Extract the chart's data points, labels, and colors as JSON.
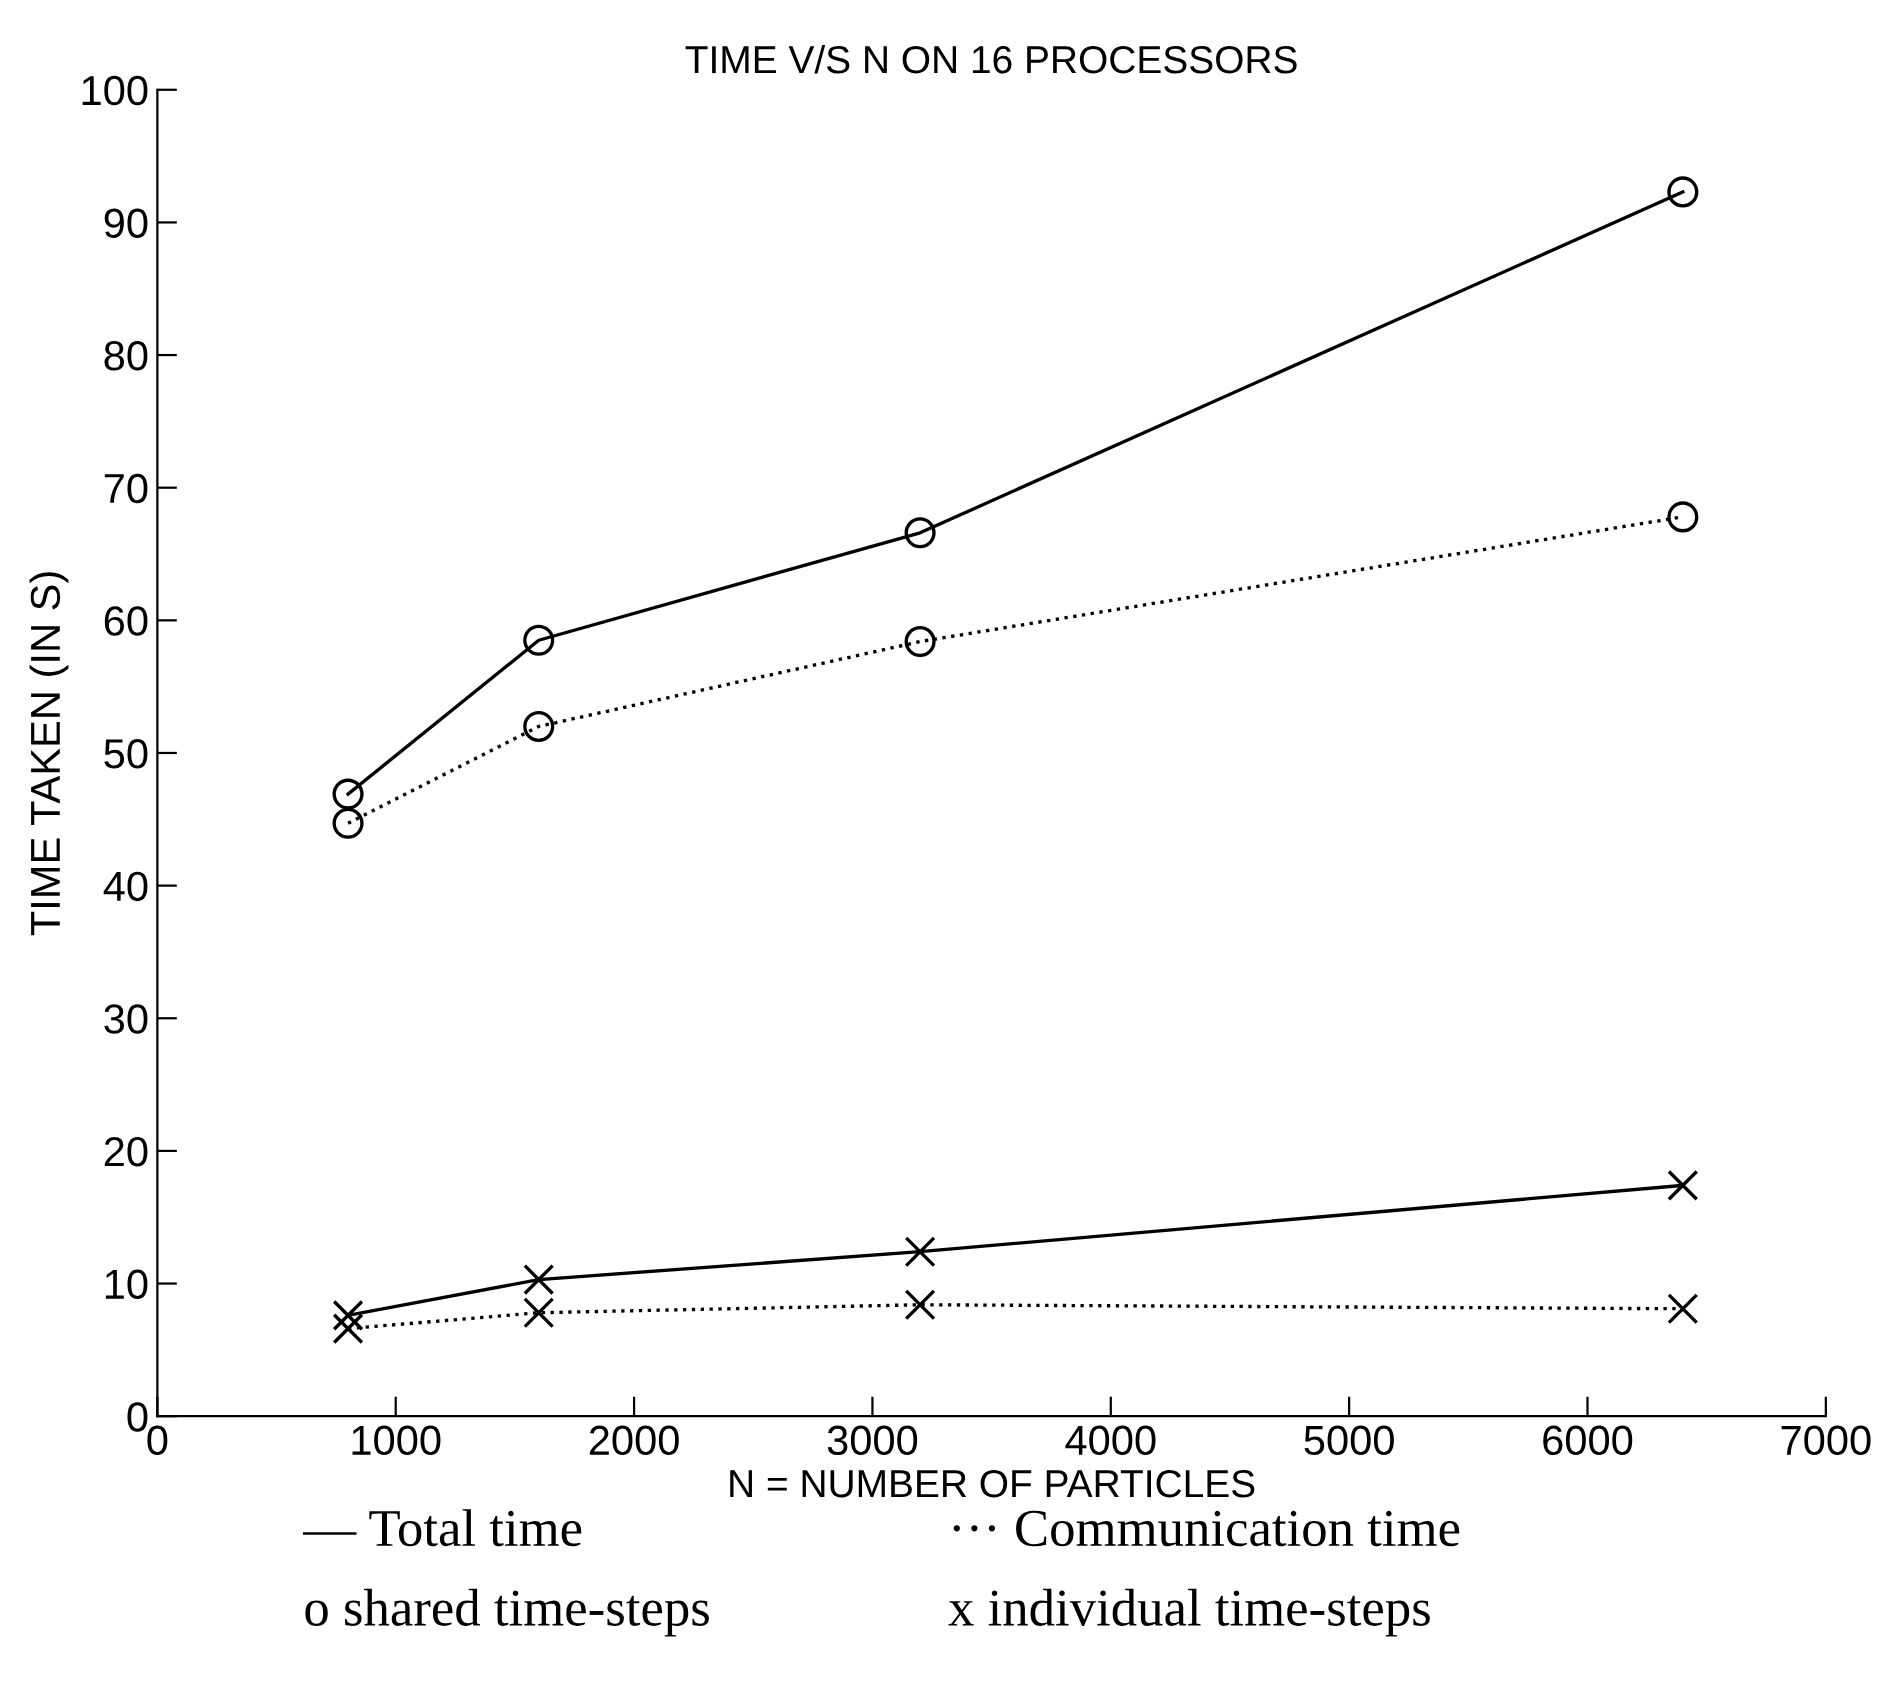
{
  "chart_data": {
    "type": "line",
    "title": "TIME V/S N ON 16 PROCESSORS",
    "xlabel": "N = NUMBER OF PARTICLES",
    "ylabel": "TIME TAKEN (IN S)",
    "x": [
      800,
      1600,
      3200,
      6400
    ],
    "series": [
      {
        "color": "#000000",
        "values": [
          46.9,
          58.5,
          66.6,
          92.3
        ],
        "marker": "circle",
        "line_style": "solid"
      },
      {
        "color": "#000000",
        "values": [
          44.7,
          52.0,
          58.4,
          67.8
        ],
        "marker": "circle",
        "line_style": "dotted"
      },
      {
        "color": "#000000",
        "values": [
          7.6,
          10.3,
          12.4,
          17.4
        ],
        "marker": "cross",
        "line_style": "solid"
      },
      {
        "color": "#000000",
        "values": [
          6.6,
          7.8,
          8.4,
          8.1
        ],
        "marker": "cross",
        "line_style": "dotted"
      }
    ],
    "xlim": [
      0,
      7000
    ],
    "xticks": [
      0,
      1000,
      2000,
      3000,
      4000,
      5000,
      6000,
      7000
    ],
    "ylim": [
      0,
      100
    ],
    "yticks": [
      0,
      10,
      20,
      30,
      40,
      50,
      60,
      70,
      80,
      90,
      100
    ],
    "grid": false,
    "legend": false,
    "annotations": [
      "— Total time",
      "··· Communication time",
      "o shared time-steps",
      "x individual time-steps"
    ]
  }
}
